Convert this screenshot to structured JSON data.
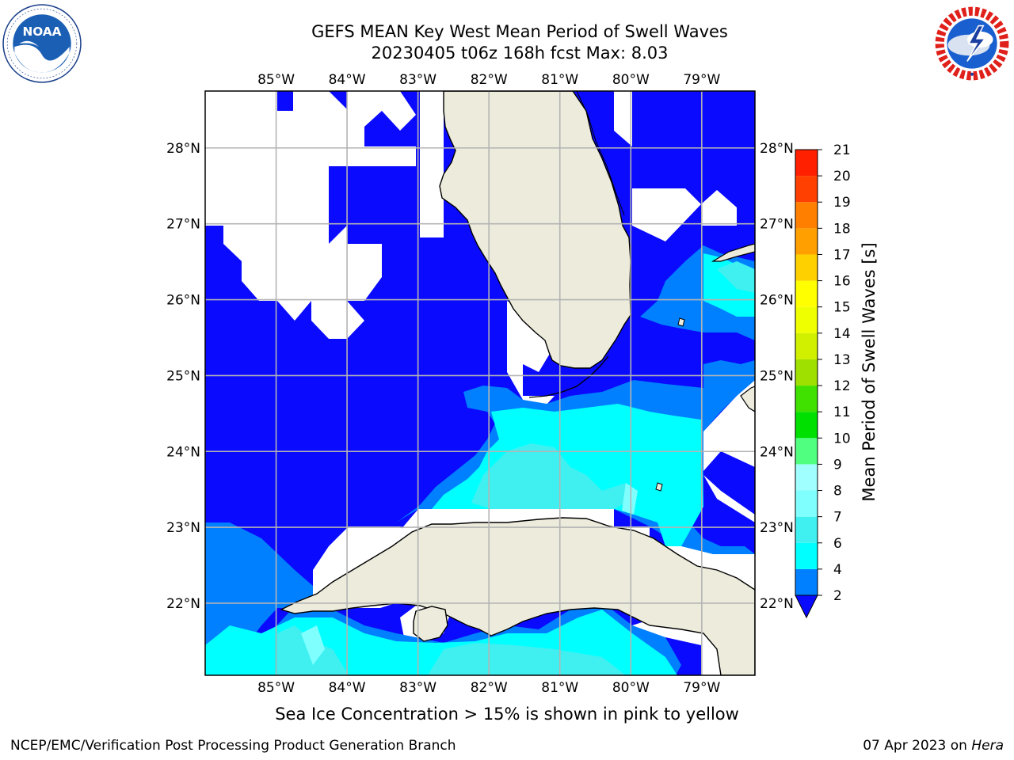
{
  "header": {
    "title_line1": "GEFS MEAN Key West Mean Period of Swell Waves",
    "title_line2": "20230405 t06z 168h fcst   Max: 8.03"
  },
  "logos": {
    "noaa_text": "NOAA",
    "noaa_ring_text": "NATIONAL OCEANIC AND ATMOSPHERIC ADMINISTRATION · U.S. DEPARTMENT OF COMMERCE",
    "nws_ring_text": "NATIONAL WEATHER SERVICE"
  },
  "map": {
    "lon_labels": [
      "85°W",
      "84°W",
      "83°W",
      "82°W",
      "81°W",
      "80°W",
      "79°W"
    ],
    "lat_labels": [
      "28°N",
      "27°N",
      "26°N",
      "25°N",
      "24°N",
      "23°N",
      "22°N"
    ],
    "extent": {
      "lon_min": -86,
      "lon_max": -78.25,
      "lat_min": 21.05,
      "lat_max": 28.75
    }
  },
  "colorbar": {
    "label": "Mean Period of Swell Waves [s]",
    "levels": [
      "2",
      "4",
      "6",
      "7",
      "8",
      "9",
      "10",
      "11",
      "12",
      "13",
      "14",
      "15",
      "16",
      "17",
      "18",
      "19",
      "20",
      "21"
    ],
    "tick_labels": [
      "2",
      "4",
      "6",
      "7",
      "8",
      "9",
      "10",
      "11",
      "12",
      "13",
      "14",
      "15",
      "16",
      "17",
      "18",
      "19",
      "20",
      "21"
    ],
    "colors": [
      "#0a0aff",
      "#0080ff",
      "#00ffff",
      "#40f0f0",
      "#80ffff",
      "#a0ffff",
      "#50ff80",
      "#00e000",
      "#40e000",
      "#a0e000",
      "#d0f000",
      "#f0ff00",
      "#ffff00",
      "#ffd000",
      "#ffa000",
      "#ff8000",
      "#ff4000",
      "#ff2000",
      "#ff0000"
    ]
  },
  "note": "Sea Ice Concentration > 15% is shown in pink to yellow",
  "footer": {
    "left": "NCEP/EMC/Verification Post Processing Product Generation Branch",
    "right_prefix": "07 Apr 2023 on ",
    "right_host": "Hera"
  }
}
